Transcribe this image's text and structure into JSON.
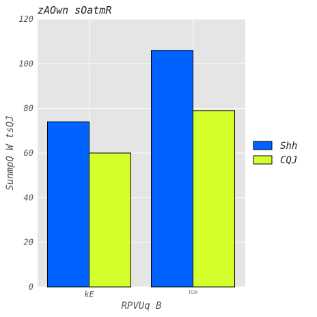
{
  "chart_data": {
    "type": "bar",
    "title": "zAOwn sOatmR",
    "xlabel": "RPVUq B",
    "ylabel": "SunmpQ W tsQJ",
    "categories": [
      "kE",
      "TCIX"
    ],
    "series": [
      {
        "name": "Shh",
        "color": "#0062ff",
        "values": [
          74,
          106
        ]
      },
      {
        "name": "CQJ",
        "color": "#d4ff2a",
        "values": [
          60,
          79
        ]
      }
    ],
    "ylim": [
      0,
      120
    ],
    "yticks": [
      "0",
      "20",
      "40",
      "60",
      "80",
      "100",
      "120"
    ],
    "grid": true,
    "legend": "right",
    "plot_background": "#e5e5e5",
    "grid_color": "#ffffff"
  }
}
